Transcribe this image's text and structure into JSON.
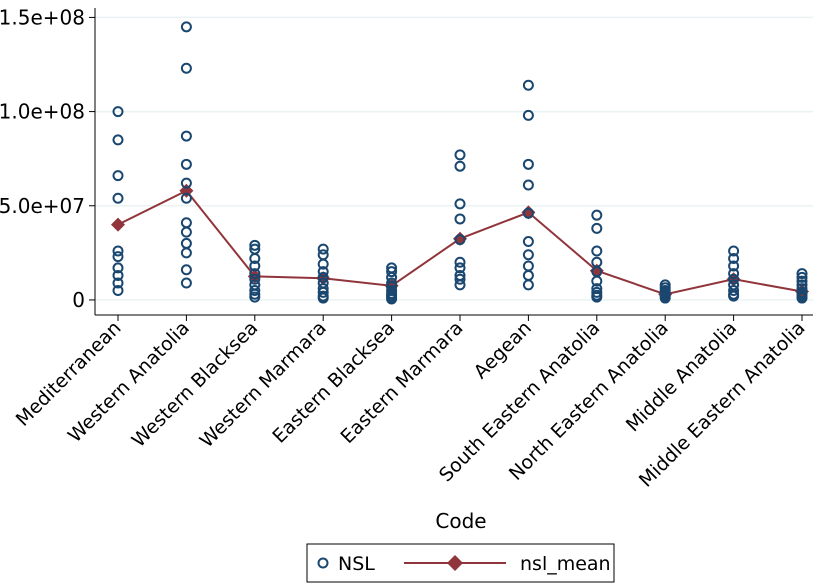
{
  "chart_data": {
    "type": "scatter",
    "xlabel": "Code",
    "ylabel": "",
    "categories": [
      "Mediterranean",
      "Western Anatolia",
      "Western Blacksea",
      "Western Marmara",
      "Eastern Blacksea",
      "Eastern Marmara",
      "Aegean",
      "South Eastern Anatolia",
      "North Eastern Anatolia",
      "Middle Anatolia",
      "Middle Eastern Anatolia"
    ],
    "ylim": [
      -8000000,
      155000000
    ],
    "yticks": [
      0,
      50000000,
      100000000,
      150000000
    ],
    "ytick_labels": [
      "0",
      "5.0e+07",
      "1.0e+08",
      "1.5e+08"
    ],
    "grid": true,
    "legend_position": "bottom",
    "colors": {
      "points": "#1a476f",
      "mean": "#90353b",
      "grid": "#eaf2f3"
    },
    "series": [
      {
        "name": "NSL",
        "kind": "scatter",
        "values": [
          [
            100000000,
            85000000,
            66000000,
            54000000,
            26000000,
            23000000,
            17000000,
            13000000,
            9000000,
            5000000
          ],
          [
            145000000,
            123000000,
            87000000,
            72000000,
            62000000,
            54000000,
            41000000,
            36000000,
            30000000,
            25000000,
            16000000,
            9000000
          ],
          [
            29000000,
            27000000,
            22000000,
            18000000,
            14000000,
            11000000,
            8000000,
            5000000,
            3000000,
            1500000
          ],
          [
            27000000,
            24000000,
            19000000,
            15000000,
            12000000,
            9000000,
            6000000,
            4000000,
            2000000,
            1000000
          ],
          [
            17000000,
            15000000,
            12000000,
            9000000,
            7000000,
            5000000,
            3500000,
            2500000,
            1500000,
            500000
          ],
          [
            77000000,
            71000000,
            51000000,
            43000000,
            32000000,
            20000000,
            17000000,
            13000000,
            11000000,
            8000000
          ],
          [
            114000000,
            98000000,
            72000000,
            61000000,
            46000000,
            31000000,
            24000000,
            18000000,
            13000000,
            8000000
          ],
          [
            45000000,
            38000000,
            26000000,
            20000000,
            15000000,
            10000000,
            6000000,
            4000000,
            2500000,
            1500000
          ],
          [
            8000000,
            6500000,
            5000000,
            4000000,
            3000000,
            2000000,
            1000000
          ],
          [
            26000000,
            22000000,
            18000000,
            14000000,
            11000000,
            8000000,
            5000000,
            3000000,
            2000000
          ],
          [
            14000000,
            12000000,
            10000000,
            8000000,
            6000000,
            4000000,
            3000000,
            2000000,
            1000000
          ]
        ]
      },
      {
        "name": "nsl_mean",
        "kind": "line",
        "values": [
          40000000,
          58000000,
          12500000,
          11500000,
          7500000,
          32500000,
          46500000,
          15500000,
          3000000,
          11000000,
          4500000
        ]
      }
    ]
  }
}
